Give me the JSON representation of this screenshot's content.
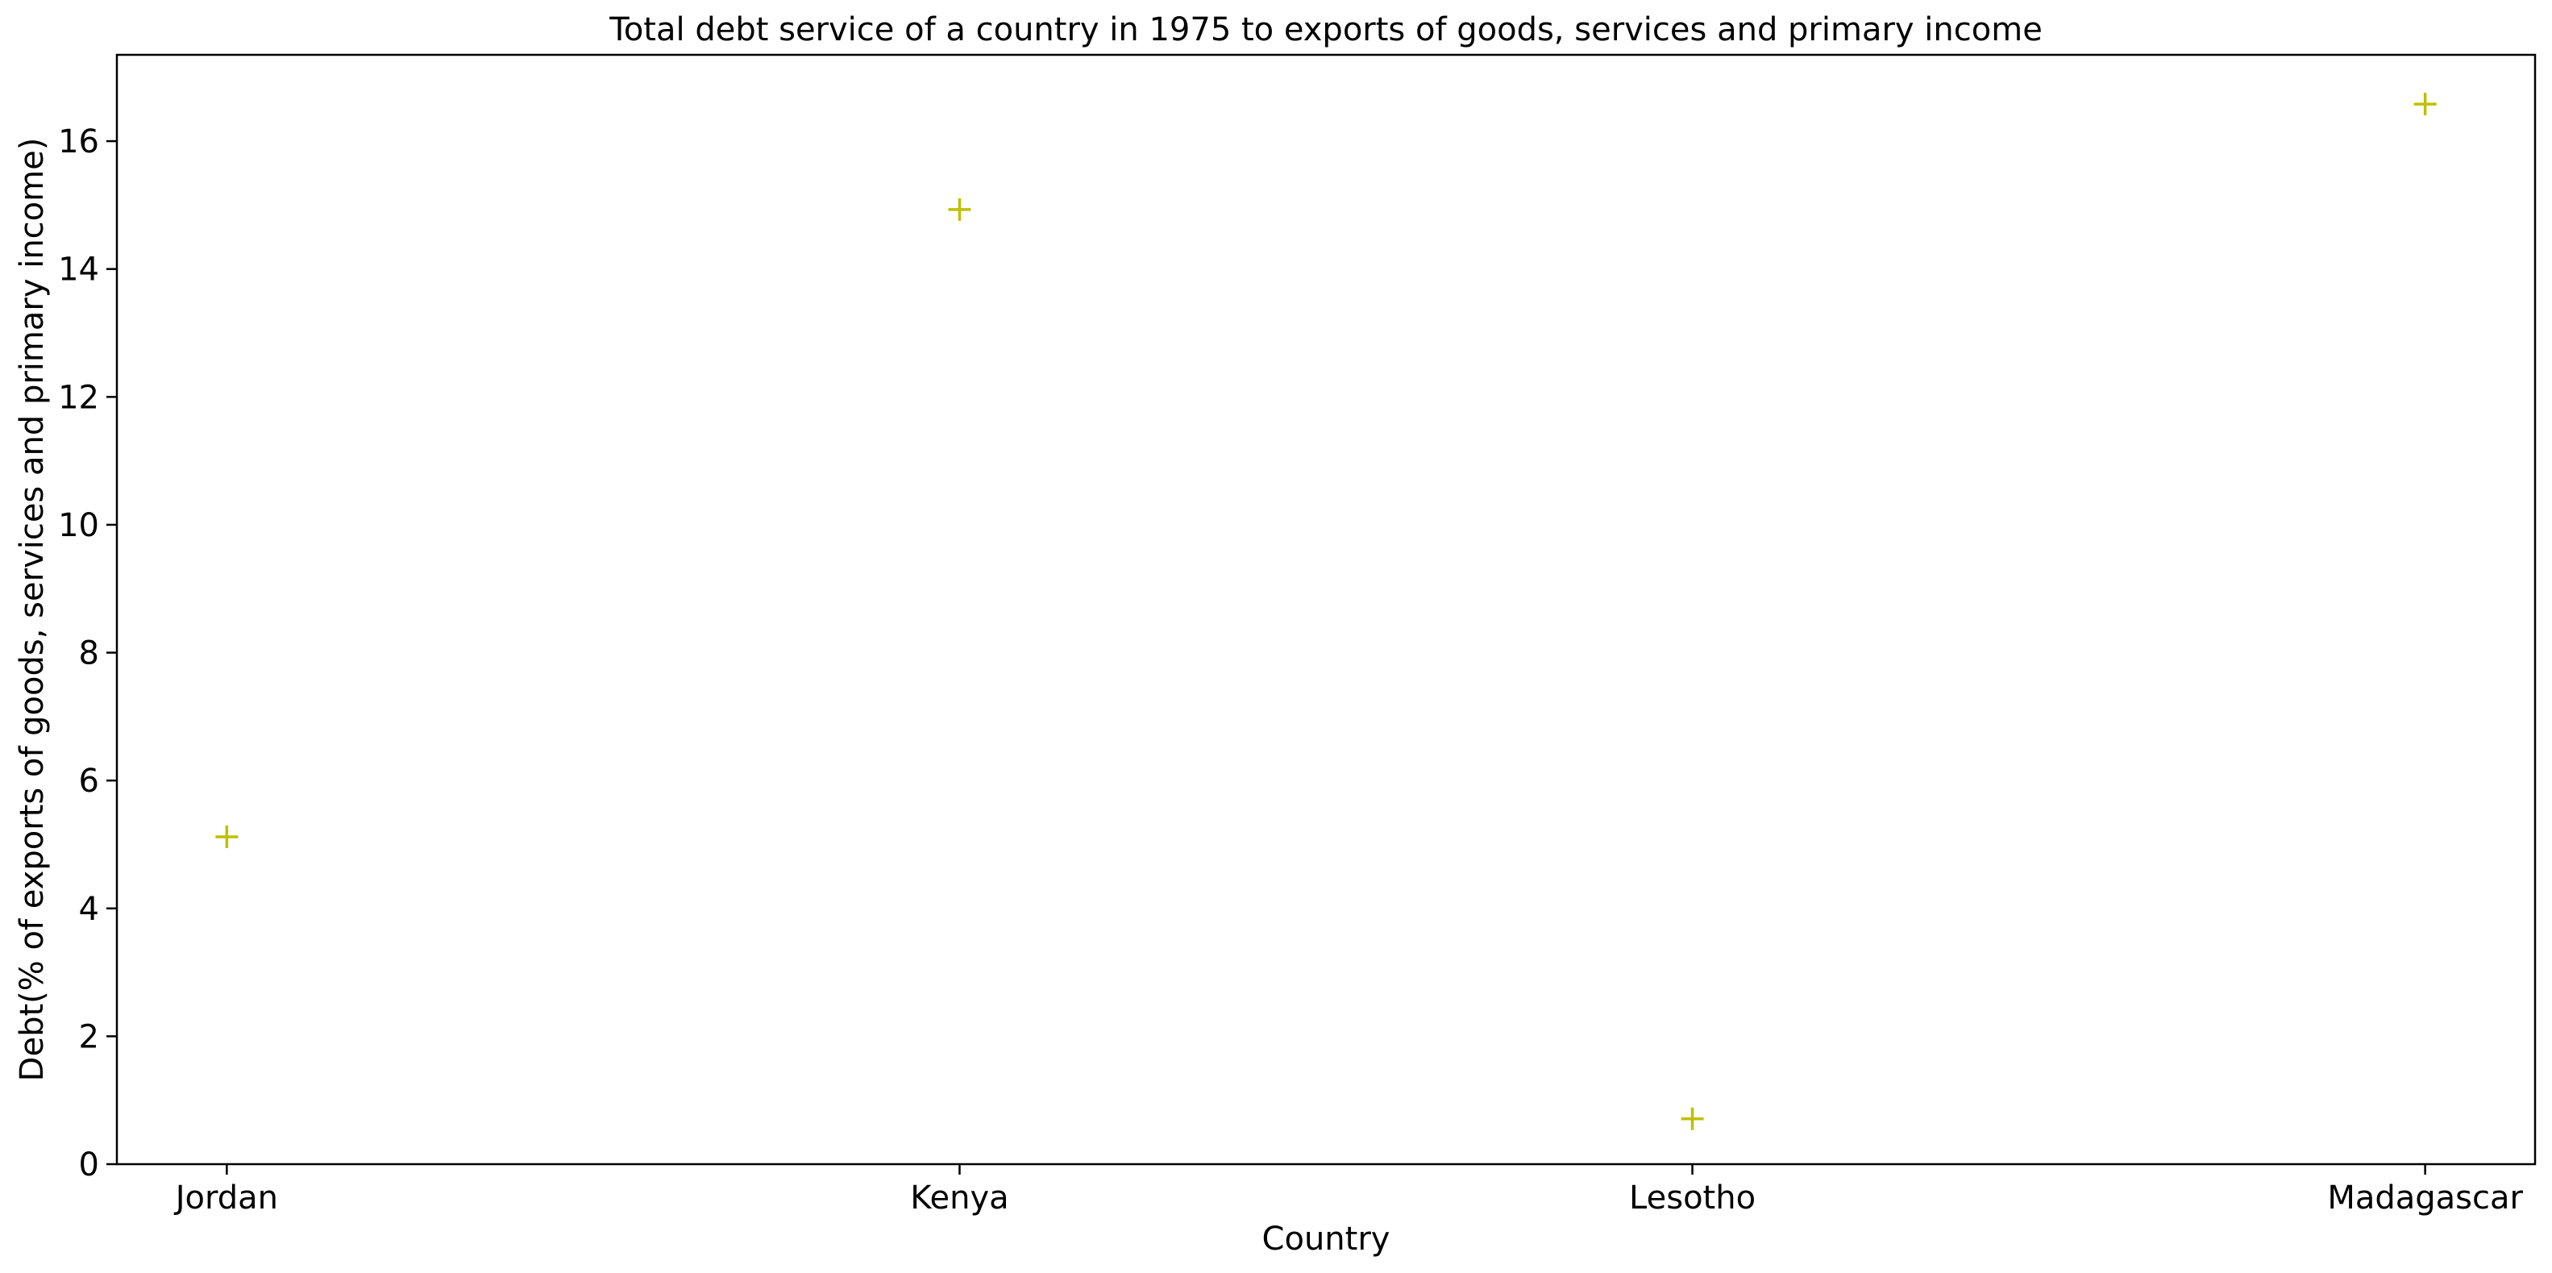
{
  "chart_data": {
    "type": "scatter",
    "title": "Total debt service of a country in 1975 to exports of goods, services and primary income",
    "xlabel": "Country",
    "ylabel": "Debt(% of exports of goods, services and primary income)",
    "categories": [
      "Jordan",
      "Kenya",
      "Lesotho",
      "Madagascar"
    ],
    "series": [
      {
        "values": [
          5.12,
          14.93,
          0.71,
          16.58
        ],
        "color": "#bfbf00",
        "marker": "plus"
      }
    ],
    "ylim": [
      0,
      17.35
    ],
    "yticks": [
      0,
      2,
      4,
      6,
      8,
      10,
      12,
      14,
      16
    ],
    "grid": false,
    "legend": "none"
  }
}
